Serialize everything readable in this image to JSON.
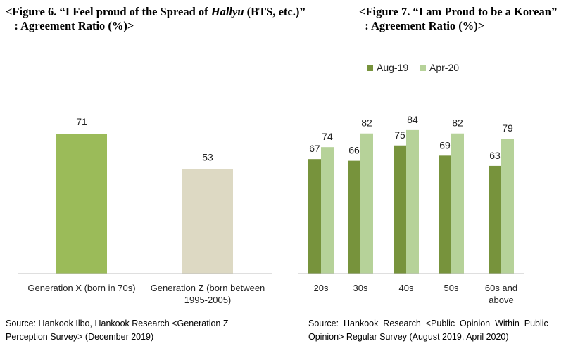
{
  "chart_data": [
    {
      "type": "bar",
      "title": "<Figure 6. “I Feel proud of the Spread of Hallyu (BTS, etc.)” : Agreement Ratio (%)>",
      "title_parts": {
        "line1_pre": "<Figure 6. “I Feel proud of the Spread of ",
        "line1_italic": "Hallyu",
        "line1_post": " (BTS, etc.)”",
        "line2": "   : Agreement Ratio (%)>"
      },
      "categories": [
        "Generation X (born in 70s)",
        "Generation Z (born between 1995-2005)"
      ],
      "category_lines": [
        [
          "Generation X (born in 70s)"
        ],
        [
          "Generation Z (born between",
          "1995-2005)"
        ]
      ],
      "values": [
        71,
        53
      ],
      "colors": [
        "#9bbb59",
        "#ddd9c3"
      ],
      "ylim": [
        0,
        100
      ],
      "grid": false,
      "source_lines": [
        "Source: Hankook Ilbo, Hankook Research <Generation Z",
        "Perception Survey> (December 2019)"
      ]
    },
    {
      "type": "bar",
      "title": "<Figure 7. “I am Proud to be a Korean” : Agreement Ratio (%)>",
      "title_parts": {
        "line1": "<Figure 7. “I am Proud to be a Korean”",
        "line2": "  : Agreement Ratio (%)>"
      },
      "categories": [
        "20s",
        "30s",
        "40s",
        "50s",
        "60s and above"
      ],
      "category_lines": [
        [
          "20s"
        ],
        [
          "30s"
        ],
        [
          "40s"
        ],
        [
          "50s"
        ],
        [
          "60s and",
          "above"
        ]
      ],
      "series": [
        {
          "name": "Aug-19",
          "values": [
            67,
            66,
            75,
            69,
            63
          ],
          "color": "#77933c"
        },
        {
          "name": "Apr-20",
          "values": [
            74,
            82,
            84,
            82,
            79
          ],
          "color": "#b6d299"
        }
      ],
      "ylim": [
        0,
        100
      ],
      "grid": false,
      "legend": "top",
      "source_lines": [
        "Source:  Hankook  Research  <Public  Opinion  Within  Public",
        "Opinion> Regular Survey (August 2019, April 2020)"
      ]
    }
  ]
}
